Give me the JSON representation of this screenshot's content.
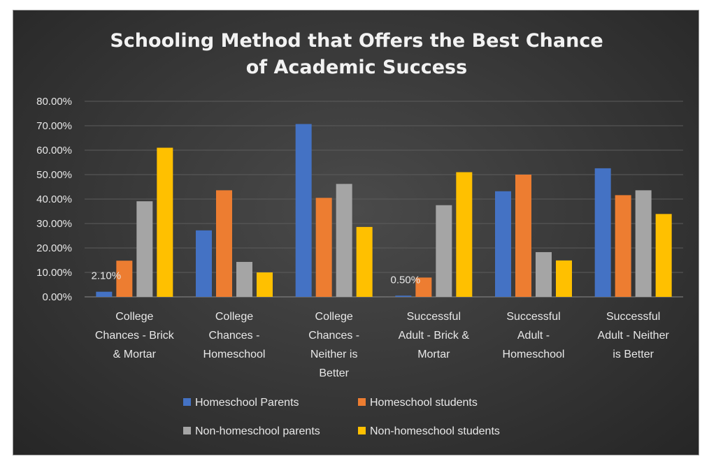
{
  "chart_data": {
    "type": "bar",
    "title": [
      "Schooling Method that Offers the Best Chance",
      "of Academic Success"
    ],
    "categories": [
      [
        "College",
        "Chances - Brick",
        "& Mortar"
      ],
      [
        "College",
        "Chances -",
        "Homeschool"
      ],
      [
        "College",
        "Chances -",
        "Neither is",
        "Better"
      ],
      [
        "Successful",
        "Adult - Brick &",
        "Mortar"
      ],
      [
        "Successful",
        "Adult -",
        "Homeschool"
      ],
      [
        "Successful",
        "Adult - Neither",
        "is Better"
      ]
    ],
    "series": [
      {
        "name": "Homeschool Parents",
        "color": "#4472c4",
        "values": [
          2.1,
          27.2,
          70.7,
          0.5,
          43.2,
          52.6
        ]
      },
      {
        "name": "Homeschool students",
        "color": "#ed7d31",
        "values": [
          14.8,
          43.6,
          40.5,
          7.9,
          50.0,
          41.6
        ]
      },
      {
        "name": "Non-homeschool parents",
        "color": "#a5a5a5",
        "values": [
          39.1,
          14.3,
          46.2,
          37.5,
          18.3,
          43.6
        ]
      },
      {
        "name": "Non-homeschool students",
        "color": "#ffc000",
        "values": [
          61.0,
          10.0,
          28.6,
          51.0,
          14.9,
          33.9
        ]
      }
    ],
    "data_labels": [
      {
        "series": 0,
        "category": 0,
        "text": "2.10%"
      },
      {
        "series": 0,
        "category": 3,
        "text": "0.50%"
      }
    ],
    "y_ticks": [
      "0.00%",
      "10.00%",
      "20.00%",
      "30.00%",
      "40.00%",
      "50.00%",
      "60.00%",
      "70.00%",
      "80.00%"
    ],
    "ylim": [
      0,
      80
    ],
    "grid": true,
    "legend_position": "bottom"
  }
}
